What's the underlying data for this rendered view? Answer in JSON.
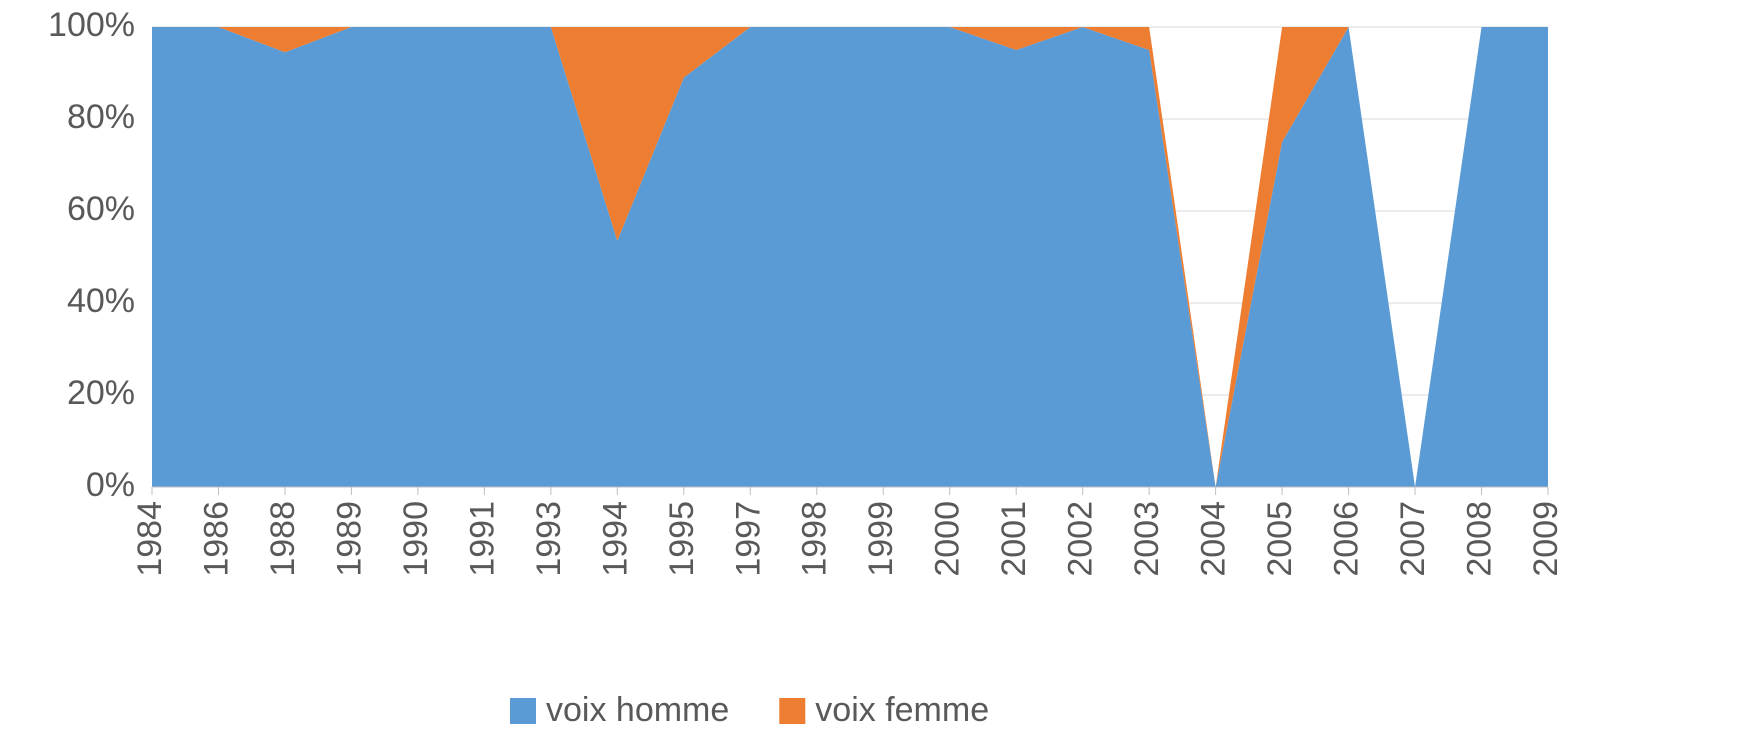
{
  "chart_data": {
    "type": "stacked_area",
    "categories": [
      "1984",
      "1986",
      "1988",
      "1989",
      "1990",
      "1991",
      "1993",
      "1994",
      "1995",
      "1997",
      "1998",
      "1999",
      "2000",
      "2001",
      "2002",
      "2003",
      "2004",
      "2005",
      "2006",
      "2007",
      "2008",
      "2009"
    ],
    "series": [
      {
        "name": "voix homme",
        "color": "#5b9bd5",
        "values": [
          100,
          100,
          94.5,
          100,
          100,
          100,
          100,
          53.5,
          89,
          100,
          100,
          100,
          100,
          95,
          100,
          95,
          0,
          75,
          100,
          0,
          100,
          100
        ]
      },
      {
        "name": "voix femme",
        "color": "#ed7d31",
        "values": [
          0,
          0,
          5.5,
          0,
          0,
          0,
          0,
          46.5,
          11,
          0,
          0,
          0,
          0,
          5,
          0,
          5,
          0,
          25,
          0,
          0,
          0,
          0
        ]
      }
    ],
    "ylim": [
      0,
      100
    ],
    "yticks": [
      {
        "value": 0,
        "label": "0%"
      },
      {
        "value": 20,
        "label": "20%"
      },
      {
        "value": 40,
        "label": "40%"
      },
      {
        "value": 60,
        "label": "60%"
      },
      {
        "value": 80,
        "label": "80%"
      },
      {
        "value": 100,
        "label": "100%"
      }
    ],
    "grid": true,
    "legend": "bottom"
  }
}
